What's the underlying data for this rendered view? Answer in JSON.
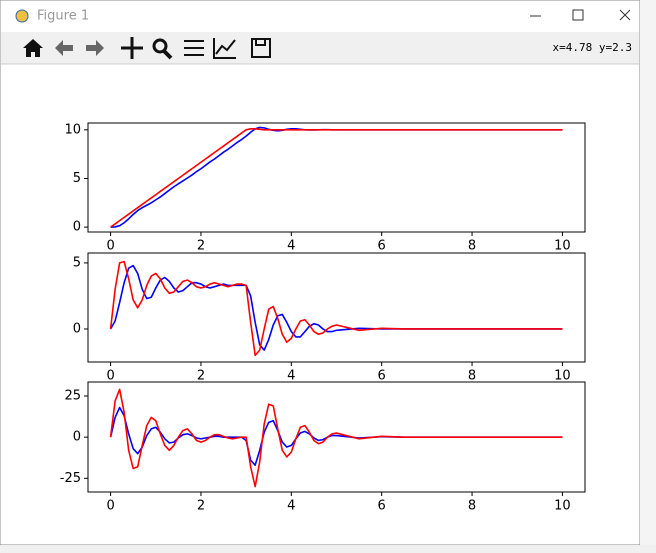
{
  "window": {
    "title": "Figure 1",
    "status": "x=4.78 y=2.3"
  },
  "chart_data": [
    {
      "type": "line",
      "x": [
        0,
        0.1,
        0.2,
        0.3,
        0.4,
        0.5,
        0.6,
        0.7,
        0.8,
        0.9,
        1.0,
        1.1,
        1.2,
        1.3,
        1.4,
        1.5,
        1.6,
        1.7,
        1.8,
        1.9,
        2.0,
        2.1,
        2.2,
        2.3,
        2.4,
        2.5,
        2.6,
        2.7,
        2.8,
        2.9,
        3.0,
        3.1,
        3.2,
        3.3,
        3.4,
        3.5,
        3.6,
        3.7,
        3.8,
        3.9,
        4.0,
        4.1,
        4.2,
        4.3,
        4.4,
        4.5,
        4.6,
        4.7,
        4.8,
        4.9,
        5.0,
        5.5,
        6,
        6.5,
        7,
        7.5,
        8,
        8.5,
        9,
        9.5,
        10
      ],
      "series": [
        {
          "color": "#0000ff",
          "values": [
            0,
            0.02,
            0.15,
            0.45,
            0.85,
            1.3,
            1.7,
            2.0,
            2.25,
            2.5,
            2.8,
            3.1,
            3.45,
            3.8,
            4.15,
            4.45,
            4.75,
            5.05,
            5.35,
            5.7,
            6.0,
            6.35,
            6.7,
            7.0,
            7.35,
            7.7,
            8.0,
            8.35,
            8.7,
            9.0,
            9.35,
            9.75,
            10.1,
            10.25,
            10.2,
            10.05,
            9.95,
            9.9,
            9.95,
            10.05,
            10.1,
            10.1,
            10.05,
            10,
            9.98,
            9.98,
            10,
            10.02,
            10.02,
            10,
            10,
            10,
            10,
            10,
            10,
            10,
            10,
            10,
            10,
            10,
            10
          ]
        },
        {
          "color": "#ff0000",
          "values": [
            0,
            0.33,
            0.67,
            1,
            1.33,
            1.67,
            2,
            2.33,
            2.67,
            3,
            3.33,
            3.67,
            4,
            4.33,
            4.67,
            5,
            5.33,
            5.67,
            6,
            6.33,
            6.67,
            7,
            7.33,
            7.67,
            8,
            8.33,
            8.67,
            9,
            9.33,
            9.67,
            10,
            10.1,
            10.1,
            10.05,
            10,
            10,
            10,
            10,
            10,
            10,
            10,
            10,
            10,
            10,
            10,
            10,
            10,
            10,
            10,
            10,
            10,
            10,
            10,
            10,
            10,
            10,
            10,
            10,
            10,
            10,
            10
          ]
        }
      ],
      "xlim": [
        -0.5,
        10.5
      ],
      "xticks": [
        0,
        2,
        4,
        6,
        8,
        10
      ],
      "ylim": [
        -0.5,
        10.7
      ],
      "yticks": [
        0,
        5,
        10
      ]
    },
    {
      "type": "line",
      "x": [
        0,
        0.1,
        0.2,
        0.3,
        0.4,
        0.5,
        0.6,
        0.7,
        0.8,
        0.9,
        1.0,
        1.1,
        1.2,
        1.3,
        1.4,
        1.5,
        1.6,
        1.7,
        1.8,
        1.9,
        2.0,
        2.1,
        2.2,
        2.3,
        2.4,
        2.5,
        2.6,
        2.7,
        2.8,
        2.9,
        3.0,
        3.1,
        3.2,
        3.3,
        3.4,
        3.5,
        3.6,
        3.7,
        3.8,
        3.9,
        4.0,
        4.1,
        4.2,
        4.3,
        4.4,
        4.5,
        4.6,
        4.7,
        4.8,
        4.9,
        5.0,
        5.5,
        6,
        6.5,
        7,
        7.5,
        8,
        8.5,
        9,
        9.5,
        10
      ],
      "series": [
        {
          "color": "#0000ff",
          "values": [
            0,
            0.6,
            2.0,
            3.5,
            4.6,
            4.8,
            4.2,
            3.0,
            2.3,
            2.4,
            3.1,
            3.7,
            3.9,
            3.6,
            3.1,
            2.8,
            2.9,
            3.2,
            3.5,
            3.5,
            3.4,
            3.2,
            3.1,
            3.2,
            3.3,
            3.4,
            3.3,
            3.3,
            3.3,
            3.3,
            3.3,
            2.5,
            0.5,
            -1.2,
            -1.6,
            -0.8,
            0.3,
            1.0,
            1.1,
            0.5,
            -0.2,
            -0.6,
            -0.6,
            -0.2,
            0.2,
            0.4,
            0.3,
            0.0,
            -0.2,
            -0.2,
            -0.1,
            0.05,
            0,
            0,
            0,
            0,
            0,
            0,
            0,
            0,
            0
          ]
        },
        {
          "color": "#ff0000",
          "values": [
            0,
            3.0,
            5.0,
            5.1,
            3.8,
            2.2,
            1.6,
            2.2,
            3.3,
            4.0,
            4.2,
            3.8,
            3.1,
            2.7,
            2.8,
            3.2,
            3.6,
            3.7,
            3.5,
            3.2,
            3.1,
            3.2,
            3.4,
            3.5,
            3.4,
            3.3,
            3.2,
            3.3,
            3.4,
            3.4,
            3.3,
            0.5,
            -2.0,
            -1.6,
            0.0,
            1.5,
            1.7,
            0.8,
            -0.4,
            -1.0,
            -0.7,
            0.0,
            0.6,
            0.7,
            0.3,
            -0.2,
            -0.4,
            -0.3,
            0.0,
            0.2,
            0.3,
            -0.1,
            0.05,
            0,
            0,
            0,
            0,
            0,
            0,
            0,
            0
          ]
        }
      ],
      "xlim": [
        -0.5,
        10.5
      ],
      "xticks": [
        0,
        2,
        4,
        6,
        8,
        10
      ],
      "ylim": [
        -2.5,
        5.75
      ],
      "yticks": [
        0,
        5
      ]
    },
    {
      "type": "line",
      "x": [
        0,
        0.1,
        0.2,
        0.3,
        0.4,
        0.5,
        0.6,
        0.7,
        0.8,
        0.9,
        1.0,
        1.1,
        1.2,
        1.3,
        1.4,
        1.5,
        1.6,
        1.7,
        1.8,
        1.9,
        2.0,
        2.1,
        2.2,
        2.3,
        2.4,
        2.5,
        2.6,
        2.7,
        2.8,
        2.9,
        3.0,
        3.1,
        3.2,
        3.3,
        3.4,
        3.5,
        3.6,
        3.7,
        3.8,
        3.9,
        4.0,
        4.1,
        4.2,
        4.3,
        4.4,
        4.5,
        4.6,
        4.7,
        4.8,
        4.9,
        5.0,
        5.5,
        6,
        6.5,
        7,
        7.5,
        8,
        8.5,
        9,
        9.5,
        10
      ],
      "series": [
        {
          "color": "#0000ff",
          "values": [
            0,
            12,
            18,
            13,
            2,
            -7,
            -10,
            -6,
            1,
            5,
            6,
            3,
            -1,
            -3.5,
            -3,
            -0.5,
            1.5,
            2,
            1,
            -0.5,
            -1,
            -0.5,
            0,
            0.5,
            0.5,
            0,
            0,
            0,
            0,
            0,
            -2,
            -14,
            -17,
            -8,
            3,
            9,
            10,
            4,
            -3,
            -6,
            -5,
            -1,
            2.5,
            3.5,
            2,
            -0.5,
            -2,
            -1.5,
            0,
            1,
            1,
            -0.5,
            0.3,
            0,
            0,
            0,
            0,
            0,
            0,
            0,
            0
          ]
        },
        {
          "color": "#ff0000",
          "values": [
            0,
            22,
            29,
            15,
            -8,
            -19,
            -18,
            -5,
            7,
            12,
            10,
            2,
            -5,
            -8,
            -5,
            0,
            4,
            5,
            2,
            -2,
            -3,
            -2,
            0,
            1.5,
            1.5,
            0.5,
            -0.5,
            -1,
            -0.5,
            0,
            0,
            -18,
            -30,
            -15,
            8,
            20,
            19,
            5,
            -8,
            -12,
            -9,
            -1,
            6,
            7,
            3,
            -2,
            -4,
            -3,
            0,
            2,
            2.5,
            -1,
            0.5,
            0,
            0,
            0,
            0,
            0,
            0,
            0,
            0
          ]
        }
      ],
      "xlim": [
        -0.5,
        10.5
      ],
      "xticks": [
        0,
        2,
        4,
        6,
        8,
        10
      ],
      "ylim": [
        -33.3,
        33.5
      ],
      "yticks": [
        -25,
        0,
        25
      ]
    }
  ]
}
